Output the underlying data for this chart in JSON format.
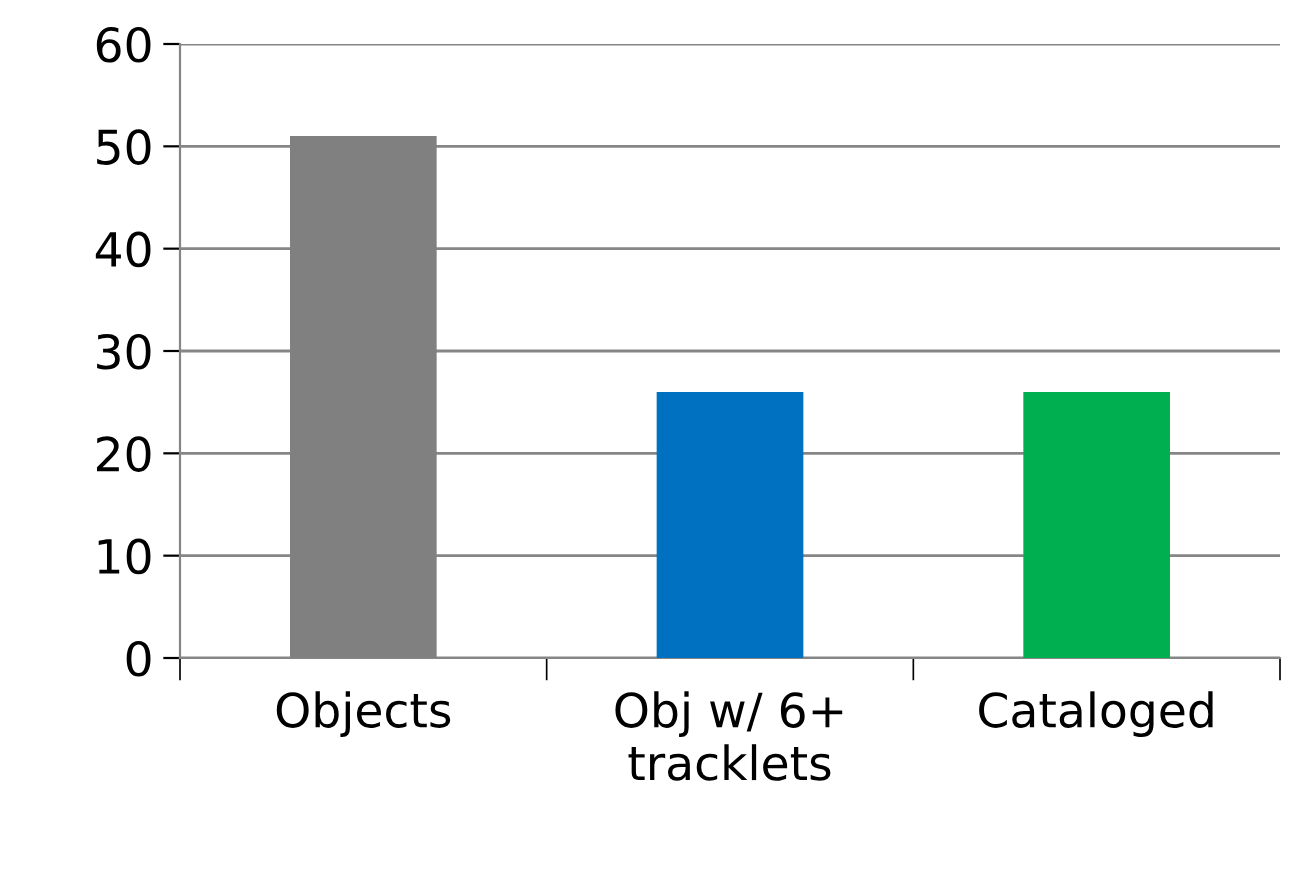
{
  "chart_data": {
    "type": "bar",
    "categories": [
      "Objects",
      "Obj w/ 6+\ntracklets",
      "Cataloged"
    ],
    "values": [
      51,
      26,
      26
    ],
    "colors": [
      "#808080",
      "#0070c0",
      "#00b050"
    ],
    "ylim": [
      0,
      60
    ],
    "yticks": [
      0,
      10,
      20,
      30,
      40,
      50,
      60
    ],
    "grid": "y",
    "legend": false
  }
}
